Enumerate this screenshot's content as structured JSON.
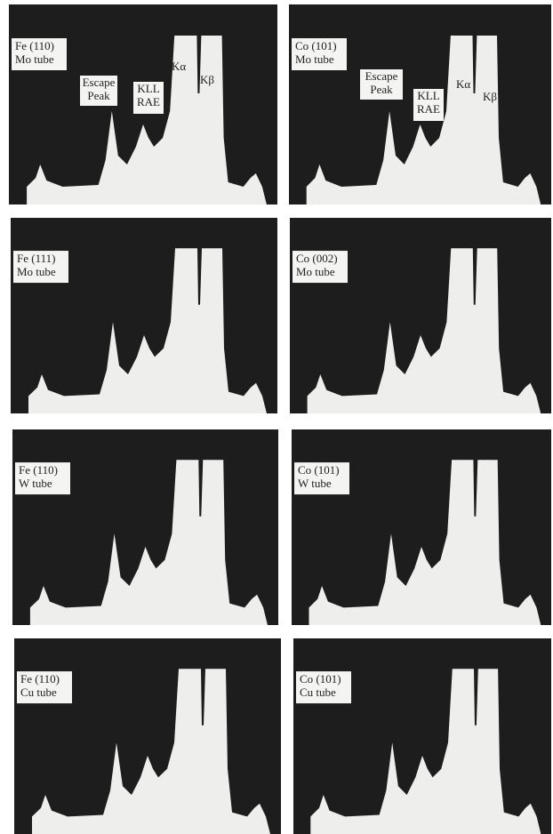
{
  "panels": [
    {
      "label": [
        "Fe (110)",
        "Mo tube"
      ],
      "annotations": [
        [
          "Escape",
          "Peak"
        ],
        [
          "KLL",
          "RAE"
        ],
        [
          "Kα"
        ],
        [
          "Kβ"
        ]
      ]
    },
    {
      "label": [
        "Co (101)",
        "Mo tube"
      ],
      "annotations": [
        [
          "Escape",
          "Peak"
        ],
        [
          "KLL",
          "RAE"
        ],
        [
          "Kα"
        ],
        [
          "Kβ"
        ]
      ]
    },
    {
      "label": [
        "Fe (111)",
        "Mo tube"
      ]
    },
    {
      "label": [
        "Co (002)",
        "Mo tube"
      ]
    },
    {
      "label": [
        "Fe (110)",
        "W tube"
      ]
    },
    {
      "label": [
        "Co (101)",
        "W tube"
      ]
    },
    {
      "label": [
        "Fe (110)",
        "Cu tube"
      ]
    },
    {
      "label": [
        "Co (101)",
        "Cu tube"
      ]
    }
  ]
}
